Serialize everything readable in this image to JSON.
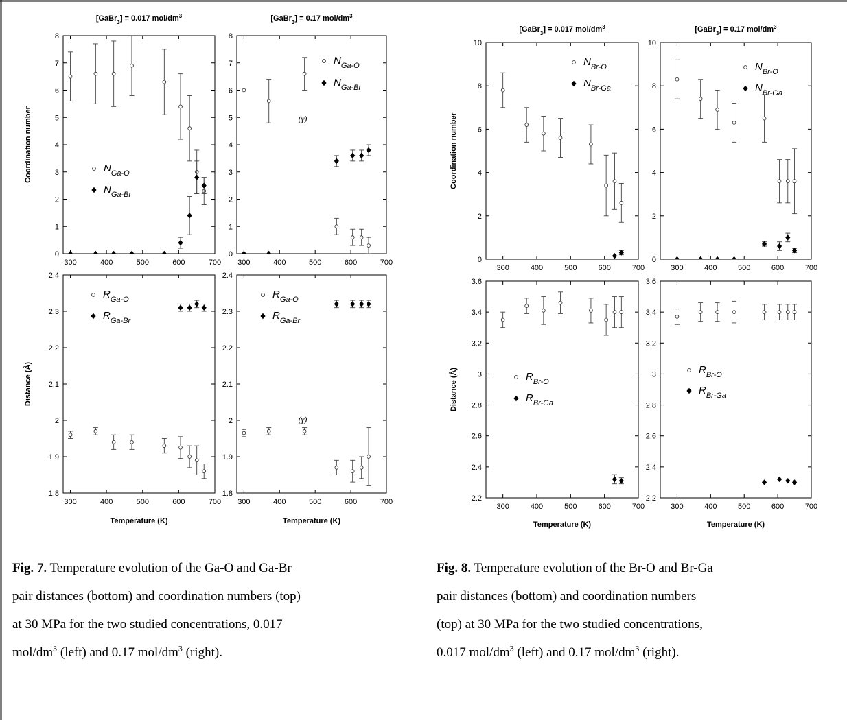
{
  "chart_data": [
    {
      "id": "fig7",
      "type": "scatter",
      "xlabel": "Temperature (K)",
      "columns": [
        {
          "title": "[GaBr3] = 0.017 mol/dm3"
        },
        {
          "title": "[GaBr3] = 0.17 mol/dm3"
        }
      ],
      "rows": [
        {
          "ylabel": "Coordination number",
          "ylim": [
            0,
            8
          ],
          "yticks": [
            0,
            1,
            2,
            3,
            4,
            5,
            6,
            7,
            8
          ]
        },
        {
          "ylabel": "Distance (Å)",
          "ylim": [
            1.8,
            2.4
          ],
          "yticks": [
            1.8,
            1.9,
            2.0,
            2.1,
            2.2,
            2.3,
            2.4
          ],
          "ytick_labels": [
            "1.8",
            "1.9",
            "2",
            "2.1",
            "2.2",
            "2.3",
            "2.4"
          ]
        }
      ],
      "xlim": [
        280,
        700
      ],
      "xticks": [
        300,
        400,
        500,
        600,
        700
      ],
      "panels": [
        {
          "row": 0,
          "col": 0,
          "legend": "middle-left",
          "series": [
            {
              "name": "NGa-O",
              "name_main": "N",
              "name_sub": "Ga-O",
              "marker": "open-circle",
              "points": [
                [
                  300,
                  6.5,
                  0.9
                ],
                [
                  370,
                  6.6,
                  1.1
                ],
                [
                  420,
                  6.6,
                  1.2
                ],
                [
                  470,
                  6.9,
                  1.1
                ],
                [
                  560,
                  6.3,
                  1.2
                ],
                [
                  605,
                  5.4,
                  1.2
                ],
                [
                  630,
                  4.6,
                  1.2
                ],
                [
                  650,
                  3.0,
                  0.8
                ],
                [
                  670,
                  2.3,
                  0.5
                ]
              ]
            },
            {
              "name": "NGa-Br",
              "name_main": "N",
              "name_sub": "Ga-Br",
              "marker": "filled-diamond",
              "points": [
                [
                  300,
                  0,
                  0
                ],
                [
                  370,
                  0,
                  0
                ],
                [
                  420,
                  0,
                  0
                ],
                [
                  470,
                  0,
                  0
                ],
                [
                  560,
                  0,
                  0
                ],
                [
                  605,
                  0.4,
                  0.2
                ],
                [
                  630,
                  1.4,
                  0.7
                ],
                [
                  650,
                  2.8,
                  0.6
                ],
                [
                  670,
                  2.5,
                  0.3
                ]
              ]
            }
          ]
        },
        {
          "row": 0,
          "col": 1,
          "legend": "top-right",
          "annotation": {
            "text": "(γ)",
            "x": 465,
            "y": 4.85
          },
          "series": [
            {
              "name": "NGa-O",
              "name_main": "N",
              "name_sub": "Ga-O",
              "marker": "open-circle",
              "points": [
                [
                  300,
                  6.0,
                  0
                ],
                [
                  370,
                  5.6,
                  0.8
                ],
                [
                  470,
                  6.6,
                  0.6
                ],
                [
                  560,
                  1.0,
                  0.3
                ],
                [
                  605,
                  0.6,
                  0.3
                ],
                [
                  630,
                  0.6,
                  0.3
                ],
                [
                  650,
                  0.3,
                  0.3
                ]
              ]
            },
            {
              "name": "NGa-Br",
              "name_main": "N",
              "name_sub": "Ga-Br",
              "marker": "filled-diamond",
              "points": [
                [
                  300,
                  0,
                  0
                ],
                [
                  370,
                  0,
                  0
                ],
                [
                  560,
                  3.4,
                  0.2
                ],
                [
                  605,
                  3.6,
                  0.2
                ],
                [
                  630,
                  3.6,
                  0.2
                ],
                [
                  650,
                  3.8,
                  0.2
                ]
              ]
            }
          ]
        },
        {
          "row": 1,
          "col": 0,
          "legend": "top-left",
          "series": [
            {
              "name": "RGa-O",
              "name_main": "R",
              "name_sub": "Ga-O",
              "marker": "open-circle",
              "points": [
                [
                  300,
                  1.96,
                  0.01
                ],
                [
                  370,
                  1.97,
                  0.01
                ],
                [
                  420,
                  1.94,
                  0.02
                ],
                [
                  470,
                  1.94,
                  0.02
                ],
                [
                  560,
                  1.93,
                  0.02
                ],
                [
                  605,
                  1.925,
                  0.03
                ],
                [
                  630,
                  1.9,
                  0.03
                ],
                [
                  650,
                  1.89,
                  0.04
                ],
                [
                  670,
                  1.86,
                  0.02
                ]
              ]
            },
            {
              "name": "RGa-Br",
              "name_main": "R",
              "name_sub": "Ga-Br",
              "marker": "filled-diamond",
              "points": [
                [
                  605,
                  2.31,
                  0.01
                ],
                [
                  630,
                  2.31,
                  0.01
                ],
                [
                  650,
                  2.32,
                  0.01
                ],
                [
                  670,
                  2.31,
                  0.01
                ]
              ]
            }
          ]
        },
        {
          "row": 1,
          "col": 1,
          "legend": "top-left",
          "annotation": {
            "text": "(γ)",
            "x": 465,
            "y": 1.995
          },
          "series": [
            {
              "name": "RGa-O",
              "name_main": "R",
              "name_sub": "Ga-O",
              "marker": "open-circle",
              "points": [
                [
                  300,
                  1.965,
                  0.01
                ],
                [
                  370,
                  1.97,
                  0.01
                ],
                [
                  470,
                  1.97,
                  0.01
                ],
                [
                  560,
                  1.87,
                  0.02
                ],
                [
                  605,
                  1.86,
                  0.03
                ],
                [
                  630,
                  1.87,
                  0.03
                ],
                [
                  650,
                  1.9,
                  0.08
                ]
              ]
            },
            {
              "name": "RGa-Br",
              "name_main": "R",
              "name_sub": "Ga-Br",
              "marker": "filled-diamond",
              "points": [
                [
                  560,
                  2.32,
                  0.01
                ],
                [
                  605,
                  2.32,
                  0.01
                ],
                [
                  630,
                  2.32,
                  0.01
                ],
                [
                  650,
                  2.32,
                  0.01
                ]
              ]
            }
          ]
        }
      ]
    },
    {
      "id": "fig8",
      "type": "scatter",
      "xlabel": "Temperature (K)",
      "columns": [
        {
          "title": "[GaBr3] = 0.017 mol/dm3"
        },
        {
          "title": "[GaBr3] = 0.17 mol/dm3"
        }
      ],
      "rows": [
        {
          "ylabel": "Coordination number",
          "ylim": [
            0,
            10
          ],
          "yticks": [
            0,
            2,
            4,
            6,
            8,
            10
          ]
        },
        {
          "ylabel": "Distance (Å)",
          "ylim": [
            2.2,
            3.6
          ],
          "yticks": [
            2.2,
            2.4,
            2.6,
            2.8,
            3.0,
            3.2,
            3.4,
            3.6
          ],
          "ytick_labels": [
            "2.2",
            "2.4",
            "2.6",
            "2.8",
            "3",
            "3.2",
            "3.4",
            "3.6"
          ]
        }
      ],
      "xlim": [
        250,
        700
      ],
      "xticks": [
        300,
        400,
        500,
        600,
        700
      ],
      "panels": [
        {
          "row": 0,
          "col": 0,
          "legend": "top-right",
          "series": [
            {
              "name": "NBr-O",
              "name_main": "N",
              "name_sub": "Br-O",
              "marker": "open-circle",
              "points": [
                [
                  300,
                  7.8,
                  0.8
                ],
                [
                  370,
                  6.2,
                  0.8
                ],
                [
                  420,
                  5.8,
                  0.8
                ],
                [
                  470,
                  5.6,
                  0.9
                ],
                [
                  560,
                  5.3,
                  0.9
                ],
                [
                  605,
                  3.4,
                  1.4
                ],
                [
                  630,
                  3.6,
                  1.3
                ],
                [
                  650,
                  2.6,
                  0.9
                ]
              ]
            },
            {
              "name": "NBr-Ga",
              "name_main": "N",
              "name_sub": "Br-Ga",
              "marker": "filled-diamond",
              "points": [
                [
                  630,
                  0.15,
                  0
                ],
                [
                  650,
                  0.3,
                  0.1
                ]
              ]
            }
          ]
        },
        {
          "row": 0,
          "col": 1,
          "legend": "top-right",
          "series": [
            {
              "name": "NBr-O",
              "name_main": "N",
              "name_sub": "Br-O",
              "marker": "open-circle",
              "points": [
                [
                  300,
                  8.3,
                  0.9
                ],
                [
                  370,
                  7.4,
                  0.9
                ],
                [
                  420,
                  6.9,
                  0.9
                ],
                [
                  470,
                  6.3,
                  0.9
                ],
                [
                  560,
                  6.5,
                  1.1
                ],
                [
                  605,
                  3.6,
                  1.0
                ],
                [
                  630,
                  3.6,
                  1.0
                ],
                [
                  650,
                  3.6,
                  1.5
                ]
              ]
            },
            {
              "name": "NBr-Ga",
              "name_main": "N",
              "name_sub": "Br-Ga",
              "marker": "filled-diamond",
              "points": [
                [
                  300,
                  0,
                  0
                ],
                [
                  370,
                  0,
                  0
                ],
                [
                  420,
                  0,
                  0
                ],
                [
                  470,
                  0,
                  0
                ],
                [
                  560,
                  0.7,
                  0.1
                ],
                [
                  605,
                  0.6,
                  0.2
                ],
                [
                  630,
                  1.0,
                  0.2
                ],
                [
                  650,
                  0.4,
                  0.1
                ]
              ]
            }
          ]
        },
        {
          "row": 1,
          "col": 0,
          "legend": "middle-left",
          "series": [
            {
              "name": "RBr-O",
              "name_main": "R",
              "name_sub": "Br-O",
              "marker": "open-circle",
              "points": [
                [
                  300,
                  3.35,
                  0.05
                ],
                [
                  370,
                  3.44,
                  0.05
                ],
                [
                  420,
                  3.41,
                  0.09
                ],
                [
                  470,
                  3.46,
                  0.07
                ],
                [
                  560,
                  3.41,
                  0.08
                ],
                [
                  605,
                  3.35,
                  0.1
                ],
                [
                  630,
                  3.4,
                  0.1
                ],
                [
                  650,
                  3.4,
                  0.1
                ]
              ]
            },
            {
              "name": "RBr-Ga",
              "name_main": "R",
              "name_sub": "Br-Ga",
              "marker": "filled-diamond",
              "points": [
                [
                  630,
                  2.32,
                  0.03
                ],
                [
                  650,
                  2.31,
                  0.02
                ]
              ]
            }
          ]
        },
        {
          "row": 1,
          "col": 1,
          "legend": "middle-left",
          "series": [
            {
              "name": "RBr-O",
              "name_main": "R",
              "name_sub": "Br-O",
              "marker": "open-circle",
              "points": [
                [
                  300,
                  3.37,
                  0.05
                ],
                [
                  370,
                  3.4,
                  0.06
                ],
                [
                  420,
                  3.4,
                  0.06
                ],
                [
                  470,
                  3.4,
                  0.07
                ],
                [
                  560,
                  3.4,
                  0.05
                ],
                [
                  605,
                  3.4,
                  0.05
                ],
                [
                  630,
                  3.4,
                  0.05
                ],
                [
                  650,
                  3.4,
                  0.05
                ]
              ]
            },
            {
              "name": "RBr-Ga",
              "name_main": "R",
              "name_sub": "Br-Ga",
              "marker": "filled-diamond",
              "points": [
                [
                  560,
                  2.3,
                  0
                ],
                [
                  605,
                  2.32,
                  0
                ],
                [
                  630,
                  2.31,
                  0
                ],
                [
                  650,
                  2.3,
                  0
                ]
              ]
            }
          ]
        }
      ]
    }
  ],
  "captions": {
    "fig7": {
      "label": "Fig. 7.",
      "l1": " Temperature evolution of the Ga-O and Ga-Br",
      "l2": "pair distances (bottom) and coordination numbers (top)",
      "l3": "at 30 MPa for the two studied concentrations, 0.017",
      "l4a": "mol/dm",
      "l4sup": "3",
      "l4b": " (left) and 0.17 mol/dm",
      "l4sup2": "3",
      "l4c": " (right)."
    },
    "fig8": {
      "label": "Fig. 8.",
      "l1": " Temperature evolution of the Br-O and Br-Ga",
      "l2": "pair distances (bottom) and coordination numbers",
      "l3": "(top) at 30 MPa for the two studied concentrations,",
      "l4a": "0.017 mol/dm",
      "l4sup": "3",
      "l4b": " (left) and 0.17 mol/dm",
      "l4sup2": "3",
      "l4c": " (right)."
    }
  }
}
